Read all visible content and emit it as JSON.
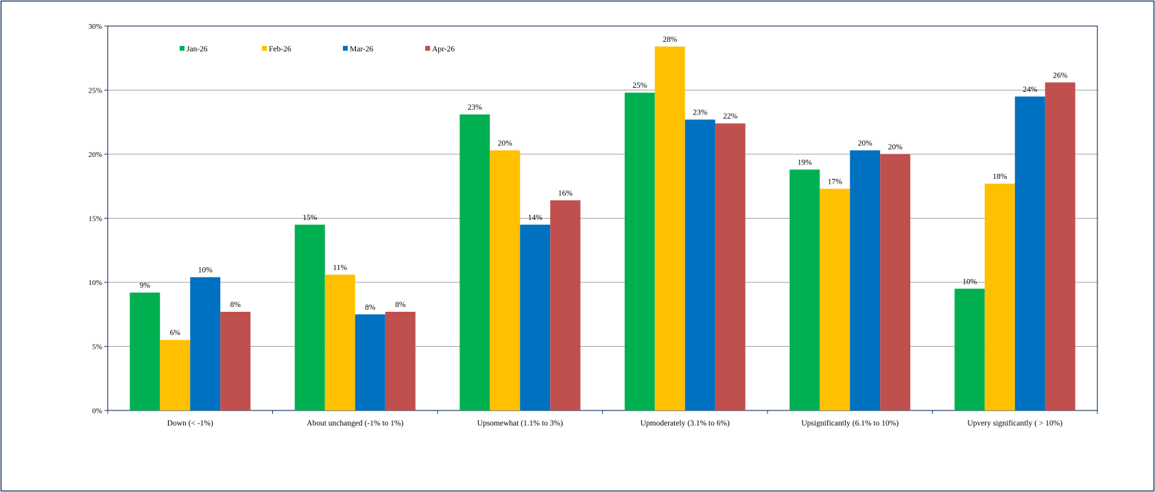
{
  "chart_data": {
    "type": "bar",
    "title": "",
    "xlabel": "",
    "ylabel": "",
    "ylim": [
      0,
      30
    ],
    "y_ticks": [
      0,
      5,
      10,
      15,
      20,
      25,
      30
    ],
    "y_tick_labels": [
      "0%",
      "5%",
      "10%",
      "15%",
      "20%",
      "25%",
      "30%"
    ],
    "grid": true,
    "legend_position": "top-left",
    "categories": [
      "Down (< -1%)",
      "About unchanged (-1% to 1%)",
      "Upsomewhat (1.1% to 3%)",
      "Upmoderately (3.1% to 6%)",
      "Upsignificantly (6.1% to 10%)",
      "Upvery significantly ( > 10%)"
    ],
    "series": [
      {
        "name": "Jan-26",
        "color": "#00b050",
        "values": [
          9.2,
          14.5,
          23.1,
          24.8,
          18.8,
          9.5
        ],
        "labels": [
          "9%",
          "15%",
          "23%",
          "25%",
          "19%",
          "10%"
        ]
      },
      {
        "name": "Feb-26",
        "color": "#ffc000",
        "values": [
          5.5,
          10.6,
          20.3,
          28.4,
          17.3,
          17.7
        ],
        "labels": [
          "6%",
          "11%",
          "20%",
          "28%",
          "17%",
          "18%"
        ]
      },
      {
        "name": "Mar-26",
        "color": "#0070c0",
        "values": [
          10.4,
          7.5,
          14.5,
          22.7,
          20.3,
          24.5
        ],
        "labels": [
          "10%",
          "8%",
          "14%",
          "23%",
          "20%",
          "24%"
        ]
      },
      {
        "name": "Apr-26",
        "color": "#c0504d",
        "values": [
          7.7,
          7.7,
          16.4,
          22.4,
          20.0,
          25.6
        ],
        "labels": [
          "8%",
          "8%",
          "16%",
          "22%",
          "20%",
          "26%"
        ]
      }
    ]
  }
}
